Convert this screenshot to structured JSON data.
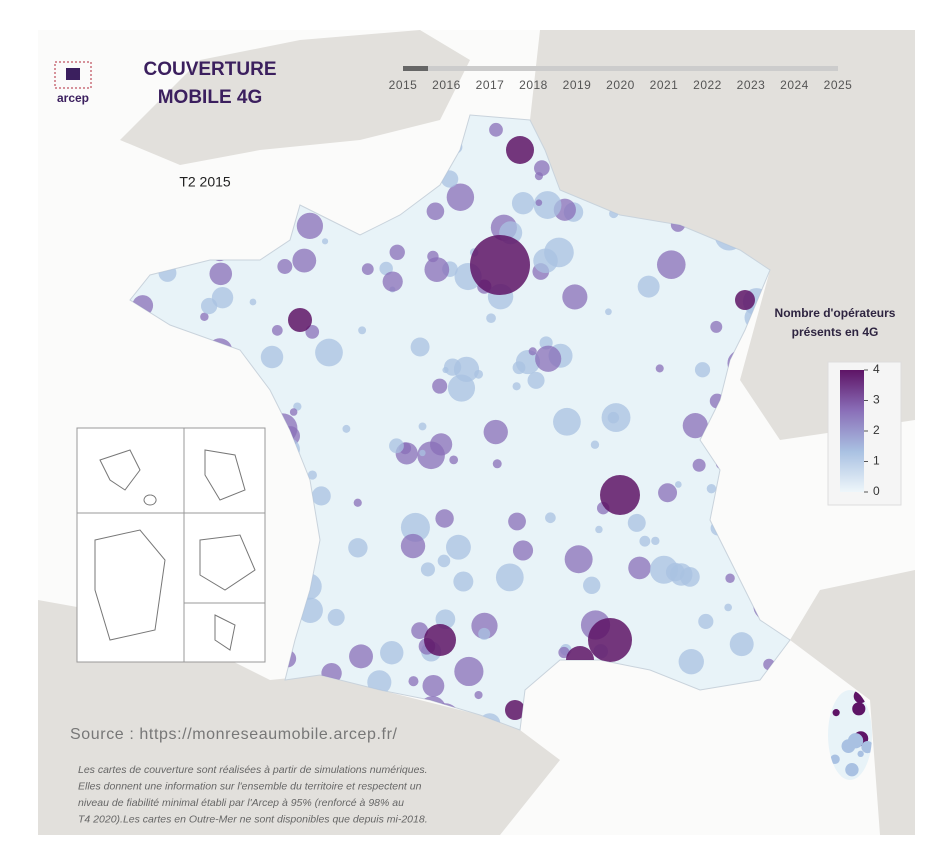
{
  "logo": "arcep",
  "title_lines": [
    "COUVERTURE",
    "MOBILE 4G"
  ],
  "timeline": {
    "years": [
      "2015",
      "2016",
      "2017",
      "2018",
      "2019",
      "2020",
      "2021",
      "2022",
      "2023",
      "2024",
      "2025"
    ]
  },
  "period": "T2 2015",
  "legend": {
    "title_lines": [
      "Nombre d'opérateurs",
      "présents en 4G"
    ],
    "range": [
      0,
      4
    ],
    "ticks": [
      0,
      1,
      2,
      3,
      4
    ],
    "colors": [
      "#eef6fa",
      "#a9c1e2",
      "#8a6fb8",
      "#5e1466"
    ]
  },
  "source": "Source : https://monreseaumobile.arcep.fr/",
  "note_lines": [
    "Les cartes de couverture sont réalisées à partir de simulations numériques.",
    "Elles donnent une information sur l'ensemble du territoire et respectent un",
    "niveau de fiabilité minimal établi par l'Arcep à 95% (renforcé à 98% au",
    "T4 2020).Les cartes en Outre-Mer ne sont disponibles que depuis mi-2018."
  ]
}
